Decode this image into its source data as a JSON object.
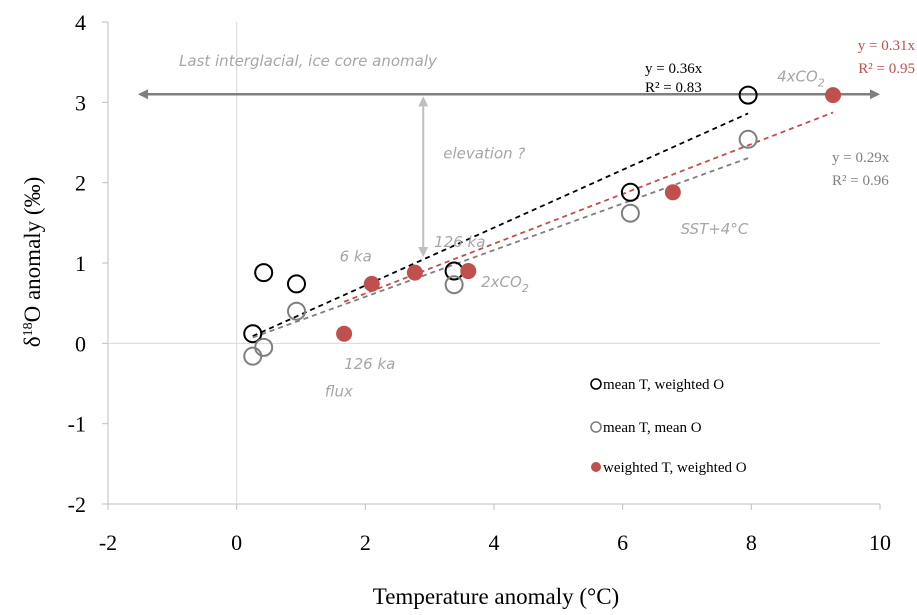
{
  "chart_data": {
    "type": "scatter",
    "xlabel": "Temperature anomaly (°C)",
    "ylabel_main": "δ",
    "ylabel_sup": "18",
    "ylabel_rest": "O anomaly (‰)",
    "xlim": [
      -2,
      10
    ],
    "ylim": [
      -2,
      4
    ],
    "x_ticks": [
      -2,
      0,
      2,
      4,
      6,
      8,
      10
    ],
    "y_ticks": [
      -2,
      -1,
      0,
      1,
      2,
      3,
      4
    ],
    "series": [
      {
        "name": "mean T, weighted O",
        "marker": "open-circle",
        "color": "#000000",
        "points": [
          [
            0.25,
            0.12
          ],
          [
            0.42,
            0.88
          ],
          [
            0.93,
            0.74
          ],
          [
            3.38,
            0.9
          ],
          [
            6.12,
            1.88
          ],
          [
            7.95,
            3.09
          ]
        ],
        "trend_slope": 0.36,
        "trend_range": [
          0.25,
          7.95
        ],
        "equation": "y = 0.36x",
        "r2": "R² = 0.83"
      },
      {
        "name": "mean T, mean O",
        "marker": "open-circle",
        "color": "#7f7f7f",
        "points": [
          [
            0.25,
            -0.16
          ],
          [
            0.42,
            -0.05
          ],
          [
            0.93,
            0.4
          ],
          [
            3.38,
            0.73
          ],
          [
            6.12,
            1.62
          ],
          [
            7.95,
            2.54
          ]
        ],
        "trend_slope": 0.29,
        "trend_range": [
          0.25,
          7.95
        ],
        "equation": "y = 0.29x",
        "r2": "R² = 0.96"
      },
      {
        "name": "weighted T, weighted O",
        "marker": "filled-circle",
        "color": "#c0504d",
        "points": [
          [
            1.67,
            0.12
          ],
          [
            2.1,
            0.74
          ],
          [
            2.77,
            0.88
          ],
          [
            3.6,
            0.9
          ],
          [
            6.78,
            1.88
          ],
          [
            9.27,
            3.09
          ]
        ],
        "trend_slope": 0.31,
        "trend_range": [
          1.67,
          9.27
        ],
        "equation": "y = 0.31x",
        "r2": "R² = 0.95"
      }
    ],
    "reference_line": {
      "label": "Last interglacial, ice core anomaly",
      "y": 3.1,
      "x_range": [
        -2,
        10
      ]
    },
    "elevation_arrow": {
      "label": "elevation ?",
      "x": 2.9,
      "y_range": [
        1.1,
        3.05
      ]
    },
    "annotations": [
      {
        "text": "6 ka",
        "x": 1.6,
        "y": 1.02
      },
      {
        "text": "126 ka",
        "x": 3.07,
        "y": 1.2
      },
      {
        "text": "126 ka",
        "x": 1.67,
        "y": -0.32
      },
      {
        "text": "flux",
        "x": 1.37,
        "y": -0.66
      },
      {
        "text": "SST+4°C",
        "x": 6.9,
        "y": 1.36
      },
      {
        "text": "2xCO",
        "sub": "2",
        "x": 3.8,
        "y": 0.7
      },
      {
        "text": "4xCO",
        "sub": "2",
        "x": 8.4,
        "y": 3.26
      }
    ],
    "legend_position": "bottom-right",
    "grid": false
  }
}
